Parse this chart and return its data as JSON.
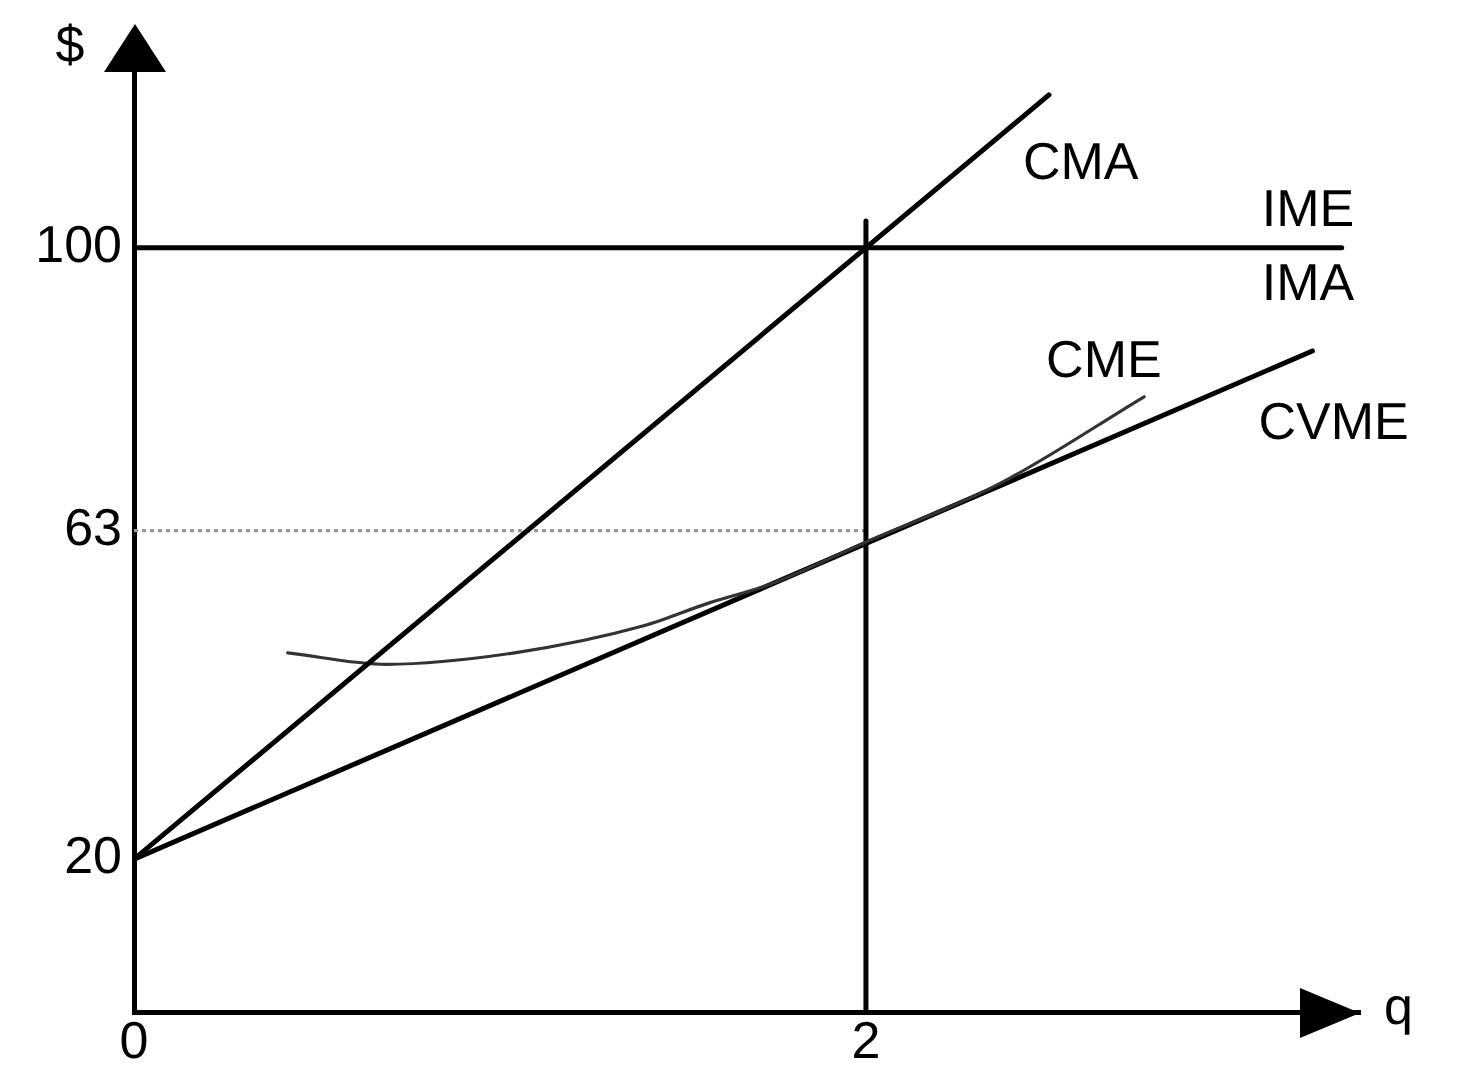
{
  "chart_data": {
    "type": "line",
    "xlabel": "q",
    "ylabel": "$",
    "xlim": [
      0,
      3.35
    ],
    "ylim": [
      0,
      123
    ],
    "xticks": [
      0,
      2
    ],
    "yticks": [
      20,
      63,
      100
    ],
    "marker": "none",
    "line_style": "solid",
    "series": [
      {
        "name": "CMA",
        "color": "#000000",
        "x": [
          0,
          2.5
        ],
        "values": [
          20,
          120
        ]
      },
      {
        "name": "IME",
        "color": "#000000",
        "x": [
          0,
          3.3
        ],
        "values": [
          100,
          100
        ]
      },
      {
        "name": "CME",
        "color": "#333333",
        "x": [
          0.42,
          0.69,
          1.04,
          1.39,
          1.57,
          1.74,
          2,
          2.36,
          2.76
        ],
        "values": [
          47,
          45.5,
          47,
          50.5,
          53.5,
          56,
          61.5,
          69,
          80.5
        ]
      },
      {
        "name": "CVME",
        "color": "#000000",
        "x": [
          0,
          3.22
        ],
        "values": [
          20,
          86.5
        ]
      },
      {
        "color": "#000000",
        "x": [
          2,
          2
        ],
        "values": [
          0,
          103.5
        ]
      },
      {
        "color": "#999999",
        "x": [
          0,
          2
        ],
        "values": [
          63,
          63
        ],
        "line_style": "dotted"
      }
    ],
    "annotations": [
      {
        "text": "IMA",
        "x": 3.3,
        "y": 100
      }
    ]
  }
}
